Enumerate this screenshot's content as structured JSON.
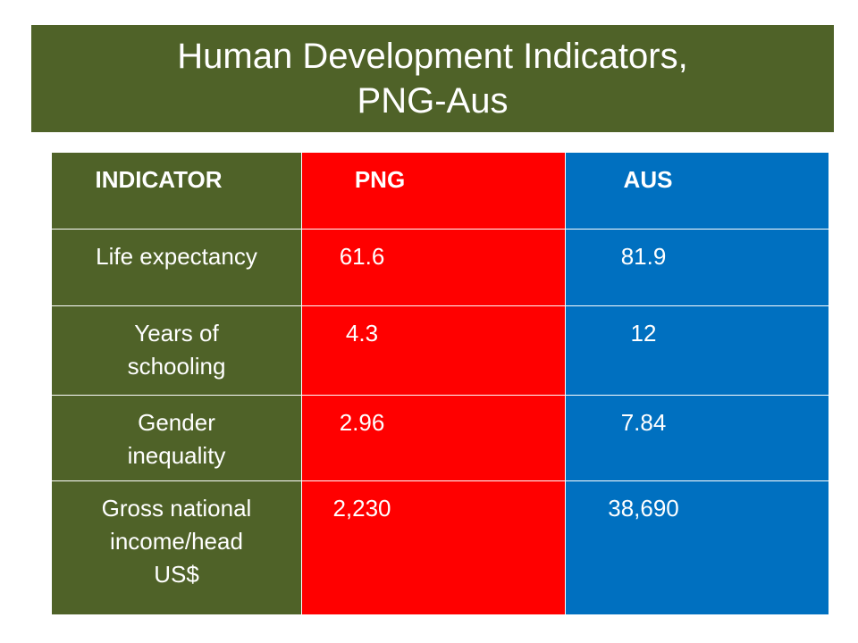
{
  "title": {
    "line1": "Human Development Indicators,",
    "line2": "PNG-Aus"
  },
  "table": {
    "headers": [
      "INDICATOR",
      "PNG",
      "AUS"
    ],
    "rows": [
      {
        "indicator_lines": [
          "Life expectancy"
        ],
        "png": "61.6",
        "aus": "81.9"
      },
      {
        "indicator_lines": [
          "Years of",
          "schooling"
        ],
        "png": "4.3",
        "aus": "12"
      },
      {
        "indicator_lines": [
          "Gender",
          "inequality"
        ],
        "png": "2.96",
        "aus": "7.84"
      },
      {
        "indicator_lines": [
          "Gross national",
          "income/head",
          "US$"
        ],
        "png": "2,230",
        "aus": "38,690"
      }
    ]
  },
  "colors": {
    "olive": "#4f6228",
    "png_red": "#ff0000",
    "aus_blue": "#0070c0"
  }
}
